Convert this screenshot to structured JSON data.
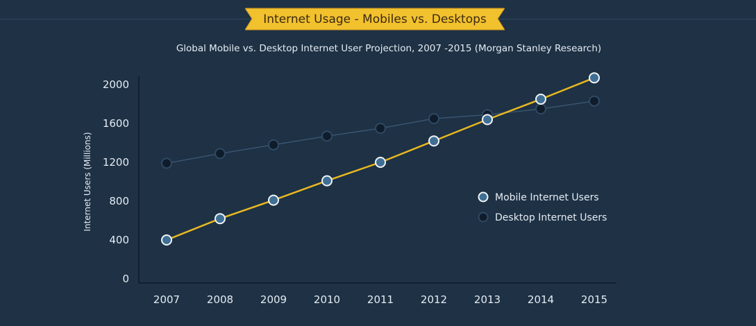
{
  "banner": {
    "title": "Internet Usage - Mobiles vs. Desktops"
  },
  "colors": {
    "background": "#1e3145",
    "banner": "#f2c12e",
    "mobile_line": "#e8b820",
    "mobile_marker": "#3f6f95",
    "desktop_line": "#3a5570",
    "desktop_marker": "#0f1c2b"
  },
  "chart_data": {
    "type": "line",
    "title": "",
    "subtitle": "Global Mobile vs. Desktop Internet User Projection, 2007 -2015  (Morgan Stanley Research)",
    "xlabel": "",
    "ylabel": "Internet Users (Millions)",
    "ylim": [
      0,
      2000
    ],
    "yticks": [
      0,
      400,
      800,
      1200,
      1600,
      2000
    ],
    "categories": [
      "2007",
      "2008",
      "2009",
      "2010",
      "2011",
      "2012",
      "2013",
      "2014",
      "2015"
    ],
    "grid": false,
    "legend_position": "right",
    "series": [
      {
        "name": "Mobile Internet Users",
        "values": [
          400,
          620,
          810,
          1010,
          1200,
          1420,
          1640,
          1850,
          2070
        ]
      },
      {
        "name": "Desktop Internet Users",
        "values": [
          1190,
          1290,
          1380,
          1470,
          1550,
          1650,
          1690,
          1750,
          1830
        ]
      }
    ]
  }
}
